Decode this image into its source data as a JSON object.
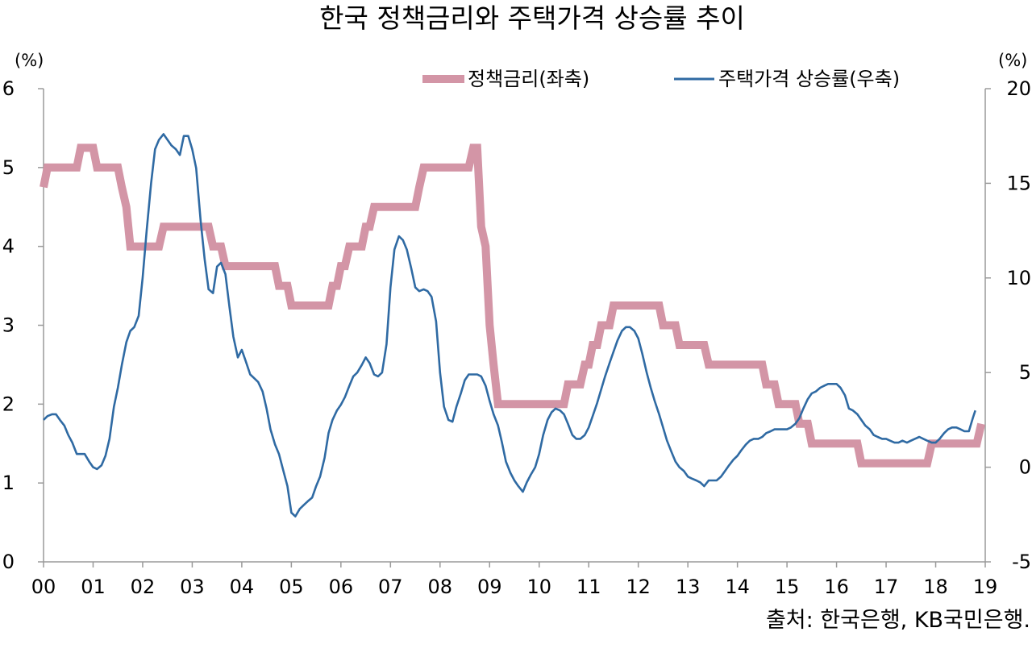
{
  "chart_data": {
    "type": "line",
    "title": "한국 정책금리와 주택가격 상승률 추이",
    "source": "출처:  한국은행, KB국민은행.",
    "left_axis": {
      "unit_label": "(%)",
      "range": [
        0,
        6
      ],
      "ticks": [
        0,
        1,
        2,
        3,
        4,
        5,
        6
      ]
    },
    "right_axis": {
      "unit_label": "(%)",
      "range": [
        -5,
        20
      ],
      "ticks": [
        -5,
        0,
        5,
        10,
        15,
        20
      ]
    },
    "x_axis": {
      "range": [
        2000,
        2019
      ],
      "tick_labels": [
        "00",
        "01",
        "02",
        "03",
        "04",
        "05",
        "06",
        "07",
        "08",
        "09",
        "10",
        "11",
        "12",
        "13",
        "14",
        "15",
        "16",
        "17",
        "18",
        "19"
      ]
    },
    "grid": false,
    "legend_position": "top",
    "series": [
      {
        "name": "정책금리(좌축)",
        "axis": "left",
        "color": "#d395a6",
        "style": "step",
        "points": [
          [
            2000.0,
            4.75
          ],
          [
            2000.08,
            5.0
          ],
          [
            2000.67,
            5.0
          ],
          [
            2000.75,
            5.25
          ],
          [
            2001.0,
            5.25
          ],
          [
            2001.08,
            5.0
          ],
          [
            2001.5,
            5.0
          ],
          [
            2001.58,
            4.75
          ],
          [
            2001.67,
            4.5
          ],
          [
            2001.75,
            4.0
          ],
          [
            2002.33,
            4.0
          ],
          [
            2002.42,
            4.25
          ],
          [
            2003.33,
            4.25
          ],
          [
            2003.42,
            4.0
          ],
          [
            2003.58,
            4.0
          ],
          [
            2003.67,
            3.75
          ],
          [
            2004.67,
            3.75
          ],
          [
            2004.75,
            3.5
          ],
          [
            2004.92,
            3.5
          ],
          [
            2005.0,
            3.25
          ],
          [
            2005.75,
            3.25
          ],
          [
            2005.83,
            3.5
          ],
          [
            2005.92,
            3.5
          ],
          [
            2006.0,
            3.75
          ],
          [
            2006.08,
            3.75
          ],
          [
            2006.17,
            4.0
          ],
          [
            2006.42,
            4.0
          ],
          [
            2006.5,
            4.25
          ],
          [
            2006.58,
            4.25
          ],
          [
            2006.67,
            4.5
          ],
          [
            2007.5,
            4.5
          ],
          [
            2007.58,
            4.75
          ],
          [
            2007.67,
            5.0
          ],
          [
            2008.58,
            5.0
          ],
          [
            2008.67,
            5.25
          ],
          [
            2008.75,
            5.25
          ],
          [
            2008.83,
            4.25
          ],
          [
            2008.92,
            4.0
          ],
          [
            2009.0,
            3.0
          ],
          [
            2009.08,
            2.5
          ],
          [
            2009.17,
            2.0
          ],
          [
            2010.42,
            2.0
          ],
          [
            2010.5,
            2.0
          ],
          [
            2010.58,
            2.25
          ],
          [
            2010.83,
            2.25
          ],
          [
            2010.92,
            2.5
          ],
          [
            2011.0,
            2.5
          ],
          [
            2011.08,
            2.75
          ],
          [
            2011.17,
            2.75
          ],
          [
            2011.25,
            3.0
          ],
          [
            2011.42,
            3.0
          ],
          [
            2011.5,
            3.25
          ],
          [
            2012.42,
            3.25
          ],
          [
            2012.5,
            3.0
          ],
          [
            2012.75,
            3.0
          ],
          [
            2012.83,
            2.75
          ],
          [
            2013.33,
            2.75
          ],
          [
            2013.42,
            2.5
          ],
          [
            2014.5,
            2.5
          ],
          [
            2014.58,
            2.25
          ],
          [
            2014.75,
            2.25
          ],
          [
            2014.83,
            2.0
          ],
          [
            2015.17,
            2.0
          ],
          [
            2015.25,
            1.75
          ],
          [
            2015.42,
            1.75
          ],
          [
            2015.5,
            1.5
          ],
          [
            2016.42,
            1.5
          ],
          [
            2016.5,
            1.25
          ],
          [
            2017.83,
            1.25
          ],
          [
            2017.92,
            1.5
          ],
          [
            2018.83,
            1.5
          ],
          [
            2018.92,
            1.75
          ]
        ]
      },
      {
        "name": "주택가격 상승률(우축)",
        "axis": "right",
        "color": "#2f6aa3",
        "style": "line",
        "points": [
          [
            2000.0,
            2.5
          ],
          [
            2000.08,
            2.7
          ],
          [
            2000.17,
            2.8
          ],
          [
            2000.25,
            2.8
          ],
          [
            2000.33,
            2.5
          ],
          [
            2000.42,
            2.2
          ],
          [
            2000.5,
            1.7
          ],
          [
            2000.58,
            1.3
          ],
          [
            2000.67,
            0.7
          ],
          [
            2000.75,
            0.7
          ],
          [
            2000.83,
            0.7
          ],
          [
            2000.92,
            0.3
          ],
          [
            2001.0,
            0.0
          ],
          [
            2001.08,
            -0.1
          ],
          [
            2001.17,
            0.1
          ],
          [
            2001.25,
            0.6
          ],
          [
            2001.33,
            1.5
          ],
          [
            2001.42,
            3.2
          ],
          [
            2001.5,
            4.2
          ],
          [
            2001.58,
            5.4
          ],
          [
            2001.67,
            6.6
          ],
          [
            2001.75,
            7.2
          ],
          [
            2001.83,
            7.4
          ],
          [
            2001.92,
            8.0
          ],
          [
            2002.0,
            10.0
          ],
          [
            2002.08,
            12.5
          ],
          [
            2002.17,
            15.0
          ],
          [
            2002.25,
            16.8
          ],
          [
            2002.33,
            17.3
          ],
          [
            2002.42,
            17.6
          ],
          [
            2002.5,
            17.3
          ],
          [
            2002.58,
            17.0
          ],
          [
            2002.67,
            16.8
          ],
          [
            2002.75,
            16.5
          ],
          [
            2002.83,
            17.5
          ],
          [
            2002.92,
            17.5
          ],
          [
            2003.0,
            16.8
          ],
          [
            2003.08,
            15.8
          ],
          [
            2003.17,
            13.0
          ],
          [
            2003.25,
            11.0
          ],
          [
            2003.33,
            9.4
          ],
          [
            2003.42,
            9.2
          ],
          [
            2003.5,
            10.6
          ],
          [
            2003.58,
            10.8
          ],
          [
            2003.67,
            10.2
          ],
          [
            2003.75,
            8.5
          ],
          [
            2003.83,
            6.9
          ],
          [
            2003.92,
            5.8
          ],
          [
            2004.0,
            6.2
          ],
          [
            2004.08,
            5.6
          ],
          [
            2004.17,
            4.9
          ],
          [
            2004.25,
            4.7
          ],
          [
            2004.33,
            4.5
          ],
          [
            2004.42,
            4.0
          ],
          [
            2004.5,
            3.1
          ],
          [
            2004.58,
            2.0
          ],
          [
            2004.67,
            1.2
          ],
          [
            2004.75,
            0.7
          ],
          [
            2004.83,
            -0.1
          ],
          [
            2004.92,
            -1.0
          ],
          [
            2005.0,
            -2.4
          ],
          [
            2005.08,
            -2.6
          ],
          [
            2005.17,
            -2.2
          ],
          [
            2005.25,
            -2.0
          ],
          [
            2005.33,
            -1.8
          ],
          [
            2005.42,
            -1.6
          ],
          [
            2005.5,
            -1.0
          ],
          [
            2005.58,
            -0.5
          ],
          [
            2005.67,
            0.5
          ],
          [
            2005.75,
            1.8
          ],
          [
            2005.83,
            2.5
          ],
          [
            2005.92,
            3.0
          ],
          [
            2006.0,
            3.3
          ],
          [
            2006.08,
            3.7
          ],
          [
            2006.17,
            4.3
          ],
          [
            2006.25,
            4.8
          ],
          [
            2006.33,
            5.0
          ],
          [
            2006.42,
            5.4
          ],
          [
            2006.5,
            5.8
          ],
          [
            2006.58,
            5.5
          ],
          [
            2006.67,
            4.9
          ],
          [
            2006.75,
            4.8
          ],
          [
            2006.83,
            5.0
          ],
          [
            2006.92,
            6.5
          ],
          [
            2007.0,
            9.5
          ],
          [
            2007.08,
            11.5
          ],
          [
            2007.17,
            12.2
          ],
          [
            2007.25,
            12.0
          ],
          [
            2007.33,
            11.5
          ],
          [
            2007.42,
            10.5
          ],
          [
            2007.5,
            9.5
          ],
          [
            2007.58,
            9.3
          ],
          [
            2007.67,
            9.4
          ],
          [
            2007.75,
            9.3
          ],
          [
            2007.83,
            9.0
          ],
          [
            2007.92,
            7.7
          ],
          [
            2008.0,
            5.0
          ],
          [
            2008.08,
            3.2
          ],
          [
            2008.17,
            2.5
          ],
          [
            2008.25,
            2.4
          ],
          [
            2008.33,
            3.2
          ],
          [
            2008.42,
            3.9
          ],
          [
            2008.5,
            4.6
          ],
          [
            2008.58,
            4.9
          ],
          [
            2008.67,
            4.9
          ],
          [
            2008.75,
            4.9
          ],
          [
            2008.83,
            4.8
          ],
          [
            2008.92,
            4.3
          ],
          [
            2009.0,
            3.5
          ],
          [
            2009.08,
            2.8
          ],
          [
            2009.17,
            2.2
          ],
          [
            2009.25,
            1.3
          ],
          [
            2009.33,
            0.3
          ],
          [
            2009.42,
            -0.3
          ],
          [
            2009.5,
            -0.7
          ],
          [
            2009.58,
            -1.0
          ],
          [
            2009.67,
            -1.3
          ],
          [
            2009.75,
            -0.8
          ],
          [
            2009.83,
            -0.4
          ],
          [
            2009.92,
            0.0
          ],
          [
            2010.0,
            0.7
          ],
          [
            2010.08,
            1.7
          ],
          [
            2010.17,
            2.5
          ],
          [
            2010.25,
            2.9
          ],
          [
            2010.33,
            3.1
          ],
          [
            2010.42,
            3.0
          ],
          [
            2010.5,
            2.8
          ],
          [
            2010.58,
            2.3
          ],
          [
            2010.67,
            1.7
          ],
          [
            2010.75,
            1.5
          ],
          [
            2010.83,
            1.5
          ],
          [
            2010.92,
            1.7
          ],
          [
            2011.0,
            2.1
          ],
          [
            2011.08,
            2.7
          ],
          [
            2011.17,
            3.4
          ],
          [
            2011.25,
            4.1
          ],
          [
            2011.33,
            4.8
          ],
          [
            2011.42,
            5.5
          ],
          [
            2011.5,
            6.1
          ],
          [
            2011.58,
            6.7
          ],
          [
            2011.67,
            7.2
          ],
          [
            2011.75,
            7.4
          ],
          [
            2011.83,
            7.4
          ],
          [
            2011.92,
            7.2
          ],
          [
            2012.0,
            6.8
          ],
          [
            2012.08,
            6.0
          ],
          [
            2012.17,
            5.0
          ],
          [
            2012.25,
            4.2
          ],
          [
            2012.33,
            3.5
          ],
          [
            2012.42,
            2.8
          ],
          [
            2012.5,
            2.1
          ],
          [
            2012.58,
            1.4
          ],
          [
            2012.67,
            0.8
          ],
          [
            2012.75,
            0.3
          ],
          [
            2012.83,
            0.0
          ],
          [
            2012.92,
            -0.2
          ],
          [
            2013.0,
            -0.5
          ],
          [
            2013.08,
            -0.6
          ],
          [
            2013.17,
            -0.7
          ],
          [
            2013.25,
            -0.8
          ],
          [
            2013.33,
            -1.0
          ],
          [
            2013.42,
            -0.7
          ],
          [
            2013.5,
            -0.7
          ],
          [
            2013.58,
            -0.7
          ],
          [
            2013.67,
            -0.5
          ],
          [
            2013.75,
            -0.2
          ],
          [
            2013.83,
            0.1
          ],
          [
            2013.92,
            0.4
          ],
          [
            2014.0,
            0.6
          ],
          [
            2014.08,
            0.9
          ],
          [
            2014.17,
            1.2
          ],
          [
            2014.25,
            1.4
          ],
          [
            2014.33,
            1.5
          ],
          [
            2014.42,
            1.5
          ],
          [
            2014.5,
            1.6
          ],
          [
            2014.58,
            1.8
          ],
          [
            2014.67,
            1.9
          ],
          [
            2014.75,
            2.0
          ],
          [
            2014.83,
            2.0
          ],
          [
            2014.92,
            2.0
          ],
          [
            2015.0,
            2.0
          ],
          [
            2015.08,
            2.1
          ],
          [
            2015.17,
            2.3
          ],
          [
            2015.25,
            2.6
          ],
          [
            2015.33,
            3.1
          ],
          [
            2015.42,
            3.6
          ],
          [
            2015.5,
            3.9
          ],
          [
            2015.58,
            4.0
          ],
          [
            2015.67,
            4.2
          ],
          [
            2015.75,
            4.3
          ],
          [
            2015.83,
            4.4
          ],
          [
            2015.92,
            4.4
          ],
          [
            2016.0,
            4.4
          ],
          [
            2016.08,
            4.2
          ],
          [
            2016.17,
            3.8
          ],
          [
            2016.25,
            3.1
          ],
          [
            2016.33,
            3.0
          ],
          [
            2016.42,
            2.8
          ],
          [
            2016.5,
            2.5
          ],
          [
            2016.58,
            2.2
          ],
          [
            2016.67,
            2.0
          ],
          [
            2016.75,
            1.7
          ],
          [
            2016.83,
            1.6
          ],
          [
            2016.92,
            1.5
          ],
          [
            2017.0,
            1.5
          ],
          [
            2017.08,
            1.4
          ],
          [
            2017.17,
            1.3
          ],
          [
            2017.25,
            1.3
          ],
          [
            2017.33,
            1.4
          ],
          [
            2017.42,
            1.3
          ],
          [
            2017.5,
            1.4
          ],
          [
            2017.58,
            1.5
          ],
          [
            2017.67,
            1.6
          ],
          [
            2017.75,
            1.5
          ],
          [
            2017.83,
            1.4
          ],
          [
            2017.92,
            1.3
          ],
          [
            2018.0,
            1.3
          ],
          [
            2018.08,
            1.5
          ],
          [
            2018.17,
            1.8
          ],
          [
            2018.25,
            2.0
          ],
          [
            2018.33,
            2.1
          ],
          [
            2018.42,
            2.1
          ],
          [
            2018.5,
            2.0
          ],
          [
            2018.58,
            1.9
          ],
          [
            2018.67,
            1.9
          ],
          [
            2018.75,
            2.6
          ],
          [
            2018.8,
            3.0
          ]
        ]
      }
    ]
  }
}
